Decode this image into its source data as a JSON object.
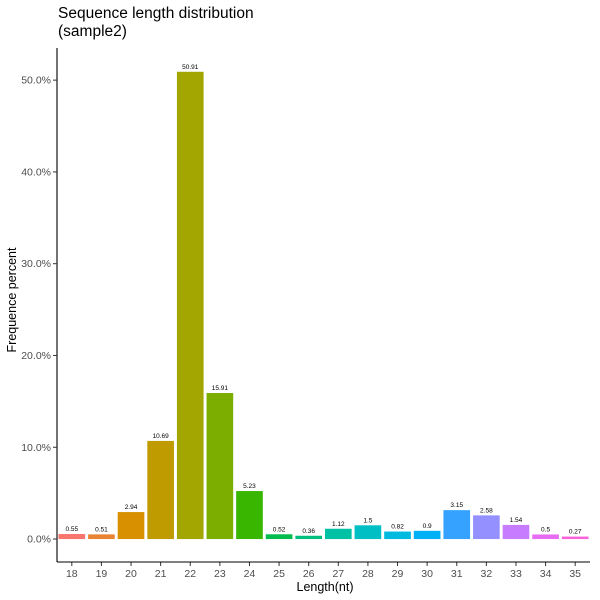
{
  "chart_data": {
    "type": "bar",
    "title": "Sequence length distribution",
    "subtitle": "(sample2)",
    "xlabel": "Length(nt)",
    "ylabel": "Frequence percent",
    "categories": [
      "18",
      "19",
      "20",
      "21",
      "22",
      "23",
      "24",
      "25",
      "26",
      "27",
      "28",
      "29",
      "30",
      "31",
      "32",
      "33",
      "34",
      "35"
    ],
    "values": [
      0.55,
      0.51,
      2.94,
      10.69,
      50.91,
      15.91,
      5.23,
      0.52,
      0.36,
      1.12,
      1.5,
      0.82,
      0.9,
      3.15,
      2.58,
      1.54,
      0.5,
      0.27
    ],
    "data_labels": [
      "0.55",
      "0.51",
      "2.94",
      "10.69",
      "50.91",
      "15.91",
      "5.23",
      "0.52",
      "0.36",
      "1.12",
      "1.5",
      "0.82",
      "0.9",
      "3.15",
      "2.58",
      "1.54",
      "0.5",
      "0.27"
    ],
    "colors": [
      "#F8766D",
      "#EA8331",
      "#D89000",
      "#C09B00",
      "#A3A500",
      "#7CAE00",
      "#39B600",
      "#00BB4E",
      "#00BF7D",
      "#00C1A3",
      "#00BFC4",
      "#00BAE0",
      "#00B0F6",
      "#35A2FF",
      "#9590FF",
      "#C77CFF",
      "#E76BF3",
      "#FA62DB"
    ],
    "y_ticks": [
      0,
      10,
      20,
      30,
      40,
      50
    ],
    "y_tick_labels": [
      "0.0%",
      "10.0%",
      "20.0%",
      "30.0%",
      "40.0%",
      "50.0%"
    ],
    "ylim": [
      -2.5,
      53.5
    ],
    "grid": false,
    "legend": "none"
  }
}
